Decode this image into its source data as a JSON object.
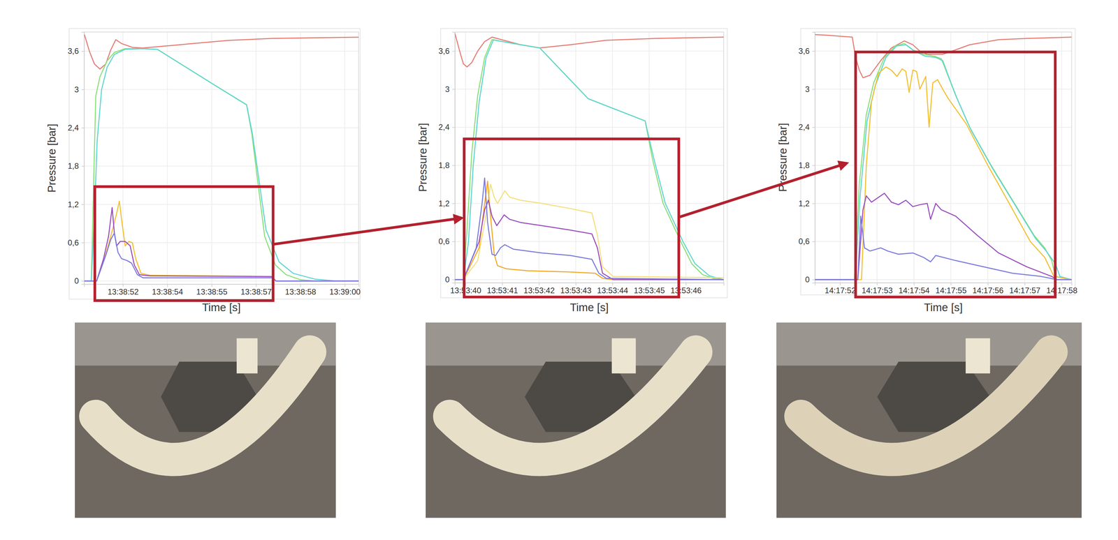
{
  "chart_data": [
    {
      "type": "line",
      "x_label": "Time [s]",
      "y_label": "Pressure [bar]",
      "grid": true,
      "xlim": [
        49130.6,
        49140.5
      ],
      "xticks": [
        {
          "value": 49132,
          "label": "13:38:52"
        },
        {
          "value": 49133.6,
          "label": "13:38:54"
        },
        {
          "value": 49135.2,
          "label": "13:38:55"
        },
        {
          "value": 49136.8,
          "label": "13:38:57"
        },
        {
          "value": 49138.4,
          "label": "13:38:58"
        },
        {
          "value": 49140,
          "label": "13:39:00"
        }
      ],
      "ylim": [
        -0.05,
        3.9
      ],
      "yticks": [
        0,
        {
          "value": 0.6,
          "label": "0,6"
        },
        {
          "value": 1.2,
          "label": "1,2"
        },
        {
          "value": 1.8,
          "label": "1,8"
        },
        {
          "value": 2.4,
          "label": "2,4"
        },
        3,
        {
          "value": 3.6,
          "label": "3,6"
        }
      ],
      "series": [
        {
          "color": "#e57d74",
          "x": [
            49130.61,
            49130.79,
            49130.97,
            49131.17,
            49131.38,
            49131.56,
            49131.74,
            49131.95,
            49132.34,
            49132.72,
            49133.5,
            49134.53,
            49135.82,
            49137.37,
            49138.92,
            49140.5
          ],
          "values": [
            3.86,
            3.6,
            3.4,
            3.32,
            3.4,
            3.62,
            3.78,
            3.72,
            3.66,
            3.65,
            3.68,
            3.72,
            3.77,
            3.8,
            3.81,
            3.82
          ]
        },
        {
          "color": "#8be07a",
          "x": [
            49130.61,
            49130.86,
            49130.94,
            49131.02,
            49131.17,
            49131.43,
            49131.69,
            49132.08,
            49132.72,
            49133.24,
            49134.27,
            49135.3,
            49136.46,
            49136.65,
            49136.85,
            49137.11,
            49137.5,
            49137.88,
            49138.4,
            49138.92,
            49140.5
          ],
          "values": [
            0,
            0,
            1.5,
            2.9,
            3.2,
            3.45,
            3.58,
            3.64,
            3.64,
            3.63,
            3.35,
            3.07,
            2.76,
            2.3,
            1.6,
            0.7,
            0.25,
            0.1,
            0.02,
            0,
            0
          ]
        },
        {
          "color": "#5fd6cf",
          "x": [
            49130.61,
            49130.86,
            49130.97,
            49131.07,
            49131.23,
            49131.43,
            49131.69,
            49132.08,
            49132.72,
            49133.24,
            49134.27,
            49135.3,
            49136.46,
            49136.67,
            49136.9,
            49137.16,
            49137.63,
            49138.14,
            49138.92,
            49139.69,
            49140.5
          ],
          "values": [
            0,
            0,
            1.0,
            2.2,
            3.0,
            3.35,
            3.55,
            3.63,
            3.64,
            3.63,
            3.35,
            3.07,
            2.76,
            2.3,
            1.6,
            0.8,
            0.3,
            0.12,
            0.03,
            0,
            0
          ]
        },
        {
          "color": "#f2c031",
          "x": [
            49130.61,
            49131.05,
            49131.3,
            49131.56,
            49131.74,
            49131.87,
            49131.97,
            49132.08,
            49132.21,
            49132.34,
            49132.46,
            49132.65,
            49132.98,
            49135.3,
            49137.37,
            49137.52,
            49140.5
          ],
          "values": [
            0,
            0,
            0.3,
            0.7,
            1.0,
            1.25,
            0.9,
            0.55,
            0.62,
            0.6,
            0.35,
            0.12,
            0.09,
            0.08,
            0.07,
            0,
            0
          ]
        },
        {
          "color": "#9b4fc0",
          "x": [
            49130.61,
            49131.05,
            49131.3,
            49131.48,
            49131.61,
            49131.69,
            49131.77,
            49131.9,
            49132.08,
            49132.26,
            49132.41,
            49132.59,
            49132.98,
            49137.37,
            49137.52,
            49140.5
          ],
          "values": [
            0,
            0,
            0.35,
            0.7,
            1.15,
            0.75,
            0.55,
            0.62,
            0.62,
            0.55,
            0.25,
            0.1,
            0.08,
            0.07,
            0,
            0
          ]
        },
        {
          "color": "#7b7be0",
          "x": [
            49130.61,
            49131.05,
            49131.38,
            49131.56,
            49131.69,
            49131.82,
            49131.95,
            49132.15,
            49132.31,
            49132.52,
            49132.72,
            49137.37,
            49137.52,
            49140.5
          ],
          "values": [
            0,
            0,
            0.4,
            0.65,
            0.75,
            0.45,
            0.35,
            0.32,
            0.28,
            0.1,
            0.05,
            0.05,
            0,
            0
          ]
        }
      ]
    },
    {
      "type": "line",
      "x_label": "Time [s]",
      "y_label": "Pressure [bar]",
      "grid": true,
      "xlim": [
        49979.71,
        49987.03
      ],
      "xticks": [
        {
          "value": 49980,
          "label": "13:53:40"
        },
        {
          "value": 49981,
          "label": "13:53:41"
        },
        {
          "value": 49982,
          "label": "13:53:42"
        },
        {
          "value": 49983,
          "label": "13:53:43"
        },
        {
          "value": 49984,
          "label": "13:53:44"
        },
        {
          "value": 49985,
          "label": "13:53:45"
        },
        {
          "value": 49986,
          "label": "13:53:46"
        }
      ],
      "ylim": [
        -0.05,
        3.9
      ],
      "yticks": [
        0,
        {
          "value": 0.6,
          "label": "0,6"
        },
        {
          "value": 1.2,
          "label": "1,2"
        },
        {
          "value": 1.8,
          "label": "1,8"
        },
        {
          "value": 2.4,
          "label": "2,4"
        },
        3,
        {
          "value": 3.6,
          "label": "3,6"
        }
      ],
      "series": [
        {
          "color": "#e57d74",
          "x": [
            49979.71,
            49979.84,
            49979.94,
            49980.04,
            49980.17,
            49980.33,
            49980.52,
            49980.72,
            49981.11,
            49981.5,
            49982.02,
            49982.85,
            49983.83,
            49985.18,
            49987.03
          ],
          "values": [
            3.88,
            3.6,
            3.4,
            3.35,
            3.42,
            3.6,
            3.75,
            3.82,
            3.76,
            3.7,
            3.65,
            3.7,
            3.77,
            3.8,
            3.82
          ]
        },
        {
          "color": "#8be07a",
          "x": [
            49979.71,
            49979.94,
            49980.04,
            49980.17,
            49980.33,
            49980.52,
            49980.72,
            49980.91,
            49981.3,
            49982.02,
            49983.34,
            49984.89,
            49985.09,
            49985.38,
            49985.86,
            49986.16,
            49986.45,
            49986.74,
            49987.03
          ],
          "values": [
            0,
            0,
            0.8,
            2.0,
            2.9,
            3.5,
            3.78,
            3.76,
            3.72,
            3.65,
            2.85,
            2.5,
            1.9,
            1.2,
            0.6,
            0.25,
            0.08,
            0.02,
            0
          ]
        },
        {
          "color": "#5fd6cf",
          "x": [
            49979.71,
            49979.94,
            49980.08,
            49980.21,
            49980.37,
            49980.56,
            49980.76,
            49980.91,
            49981.3,
            49982.02,
            49983.34,
            49984.89,
            49985.13,
            49985.44,
            49985.92,
            49986.25,
            49986.64,
            49987.03
          ],
          "values": [
            0,
            0,
            0.6,
            1.8,
            2.8,
            3.5,
            3.78,
            3.76,
            3.72,
            3.65,
            2.85,
            2.5,
            1.9,
            1.2,
            0.6,
            0.25,
            0.06,
            0
          ]
        },
        {
          "color": "#f5df7e",
          "x": [
            49979.71,
            49979.94,
            49980.33,
            49980.52,
            49980.68,
            49980.78,
            49980.87,
            49980.97,
            49981.07,
            49981.2,
            49981.5,
            49982.08,
            49982.85,
            49983.44,
            49983.59,
            49983.73,
            49984.02,
            49987.03
          ],
          "values": [
            0,
            0,
            0.3,
            0.9,
            1.5,
            1.3,
            1.2,
            1.3,
            1.4,
            1.3,
            1.25,
            1.2,
            1.12,
            1.05,
            0.7,
            0.2,
            0.05,
            0.03
          ]
        },
        {
          "color": "#f2a928",
          "x": [
            49979.71,
            49979.94,
            49980.37,
            49980.52,
            49980.6,
            49980.68,
            49980.78,
            49980.87,
            49981.11,
            49981.69,
            49982.85,
            49983.53,
            49983.73,
            49984.02,
            49987.03
          ],
          "values": [
            0,
            0,
            0.5,
            1.2,
            1.55,
            1.0,
            0.4,
            0.22,
            0.17,
            0.14,
            0.12,
            0.1,
            0.02,
            0,
            0
          ]
        },
        {
          "color": "#9b4fc0",
          "x": [
            49979.71,
            49979.94,
            49980.37,
            49980.52,
            49980.62,
            49980.72,
            49980.85,
            49980.97,
            49981.05,
            49981.2,
            49981.5,
            49982.08,
            49982.85,
            49983.44,
            49983.59,
            49983.73,
            49984.02,
            49987.03
          ],
          "values": [
            0,
            0,
            0.6,
            1.1,
            1.25,
            1.0,
            0.85,
            0.95,
            1.02,
            0.95,
            0.9,
            0.85,
            0.78,
            0.72,
            0.5,
            0.1,
            0,
            0
          ]
        },
        {
          "color": "#7b7be0",
          "x": [
            49979.71,
            49979.94,
            49980.29,
            49980.45,
            49980.52,
            49980.6,
            49980.72,
            49980.82,
            49980.95,
            49981.07,
            49981.3,
            49982.08,
            49982.85,
            49983.44,
            49983.63,
            49983.83,
            49987.03
          ],
          "values": [
            0,
            0,
            0.5,
            1.2,
            1.6,
            0.9,
            0.4,
            0.38,
            0.5,
            0.55,
            0.48,
            0.42,
            0.38,
            0.32,
            0.1,
            0.02,
            0
          ]
        }
      ]
    },
    {
      "type": "line",
      "x_label": "Time [s]",
      "y_label": "Pressure [bar]",
      "grid": true,
      "xlim": [
        51471.32,
        51478.27
      ],
      "xticks": [
        {
          "value": 51472,
          "label": "14:17:52"
        },
        {
          "value": 51473,
          "label": "14:17:53"
        },
        {
          "value": 51474,
          "label": "14:17:54"
        },
        {
          "value": 51475,
          "label": "14:17:55"
        },
        {
          "value": 51476,
          "label": "14:17:56"
        },
        {
          "value": 51477,
          "label": "14:17:57"
        },
        {
          "value": 51478,
          "label": "14:17:58"
        }
      ],
      "ylim": [
        -0.05,
        3.9
      ],
      "yticks": [
        0,
        {
          "value": 0.6,
          "label": "0,6"
        },
        {
          "value": 1.2,
          "label": "1,2"
        },
        {
          "value": 1.8,
          "label": "1,8"
        },
        {
          "value": 2.4,
          "label": "2,4"
        },
        3,
        {
          "value": 3.6,
          "label": "3,6"
        }
      ],
      "series": [
        {
          "color": "#e57d74",
          "x": [
            51471.32,
            51471.65,
            51472.33,
            51472.42,
            51472.52,
            51472.62,
            51472.81,
            51473.1,
            51473.39,
            51473.74,
            51473.97,
            51474.16,
            51474.36,
            51474.78,
            51475.13,
            51475.51,
            51476.29,
            51477.06,
            51478.27
          ],
          "values": [
            3.86,
            3.85,
            3.82,
            3.5,
            3.3,
            3.18,
            3.22,
            3.45,
            3.65,
            3.76,
            3.7,
            3.6,
            3.55,
            3.55,
            3.62,
            3.7,
            3.78,
            3.8,
            3.82
          ]
        },
        {
          "color": "#8be07a",
          "x": [
            51471.32,
            51472.39,
            51472.52,
            51472.71,
            51472.91,
            51473.2,
            51473.49,
            51473.74,
            51473.97,
            51474.26,
            51474.55,
            51474.74,
            51474.93,
            51475.13,
            51475.51,
            51476.09,
            51476.67,
            51477.25,
            51477.54,
            51477.73,
            51477.83,
            51478.27
          ],
          "values": [
            0,
            0,
            1.5,
            2.6,
            3.1,
            3.5,
            3.68,
            3.72,
            3.62,
            3.55,
            3.52,
            3.48,
            3.2,
            2.9,
            2.4,
            1.8,
            1.25,
            0.7,
            0.5,
            0.3,
            0.05,
            0
          ]
        },
        {
          "color": "#5fd6cf",
          "x": [
            51471.32,
            51472.41,
            51472.54,
            51472.73,
            51472.95,
            51473.24,
            51473.53,
            51473.78,
            51474.01,
            51474.3,
            51474.59,
            51474.78,
            51474.97,
            51475.17,
            51475.55,
            51476.13,
            51476.71,
            51477.29,
            51477.58,
            51477.83,
            51477.95,
            51478.27
          ],
          "values": [
            0,
            0,
            1.3,
            2.5,
            3.05,
            3.5,
            3.68,
            3.7,
            3.6,
            3.52,
            3.5,
            3.45,
            3.15,
            2.85,
            2.35,
            1.75,
            1.2,
            0.65,
            0.45,
            0.25,
            0.05,
            0
          ]
        },
        {
          "color": "#f2c031",
          "x": [
            51471.32,
            51472.58,
            51472.71,
            51472.85,
            51473.04,
            51473.24,
            51473.39,
            51473.54,
            51473.68,
            51473.78,
            51473.87,
            51473.97,
            51474.07,
            51474.16,
            51474.32,
            51474.41,
            51474.51,
            51474.64,
            51474.78,
            51474.93,
            51475.42,
            51476,
            51476.58,
            51477.15,
            51477.54,
            51477.79,
            51478.27
          ],
          "values": [
            0,
            0,
            1.8,
            2.8,
            3.25,
            3.35,
            3.3,
            3.2,
            3.32,
            3.28,
            2.95,
            3.3,
            3.28,
            3.0,
            3.2,
            2.4,
            3.1,
            3.15,
            3.0,
            2.85,
            2.45,
            1.8,
            1.2,
            0.6,
            0.35,
            0.05,
            0
          ]
        },
        {
          "color": "#9b4fc0",
          "x": [
            51471.32,
            51472.48,
            51472.62,
            51472.71,
            51472.85,
            51473,
            51473.2,
            51473.39,
            51473.58,
            51473.78,
            51473.97,
            51474.16,
            51474.36,
            51474.45,
            51474.59,
            51474.74,
            51475.13,
            51475.71,
            51476.29,
            51477.06,
            51477.73,
            51477.87,
            51478.27
          ],
          "values": [
            0,
            0,
            1.1,
            1.32,
            1.22,
            1.28,
            1.36,
            1.22,
            1.18,
            1.25,
            1.15,
            1.18,
            1.2,
            0.95,
            1.2,
            1.1,
            1.0,
            0.7,
            0.42,
            0.2,
            0.05,
            0,
            0
          ]
        },
        {
          "color": "#7b7be0",
          "x": [
            51471.32,
            51472.48,
            51472.56,
            51472.66,
            51472.81,
            51473.1,
            51473.29,
            51473.58,
            51473.97,
            51474.26,
            51474.45,
            51474.59,
            51475.13,
            51475.9,
            51476.67,
            51477.44,
            51477.87,
            51478.27
          ],
          "values": [
            0,
            0,
            1.0,
            0.5,
            0.45,
            0.5,
            0.45,
            0.4,
            0.42,
            0.35,
            0.28,
            0.38,
            0.3,
            0.2,
            0.1,
            0.05,
            0,
            0
          ]
        }
      ]
    }
  ]
}
